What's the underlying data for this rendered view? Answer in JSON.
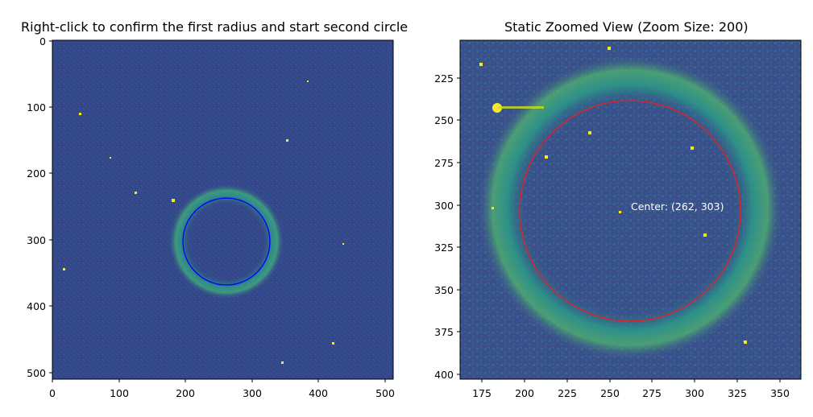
{
  "left_panel": {
    "title": "Right-click to confirm the first radius and start second circle",
    "x_ticks": [
      "0",
      "100",
      "200",
      "300",
      "400",
      "500"
    ],
    "y_ticks": [
      "0",
      "100",
      "200",
      "300",
      "400",
      "500"
    ],
    "circle_color": "#0000ff",
    "background_color": "#35468a"
  },
  "right_panel": {
    "title": "Static Zoomed View (Zoom Size: 200)",
    "x_ticks": [
      "175",
      "200",
      "225",
      "250",
      "275",
      "300",
      "325",
      "350"
    ],
    "y_ticks": [
      "225",
      "250",
      "275",
      "300",
      "325",
      "350",
      "375",
      "400"
    ],
    "center_label": "Center: (262, 303)",
    "circle_color": "#d62728",
    "background_color": "#3b4f8c"
  }
}
